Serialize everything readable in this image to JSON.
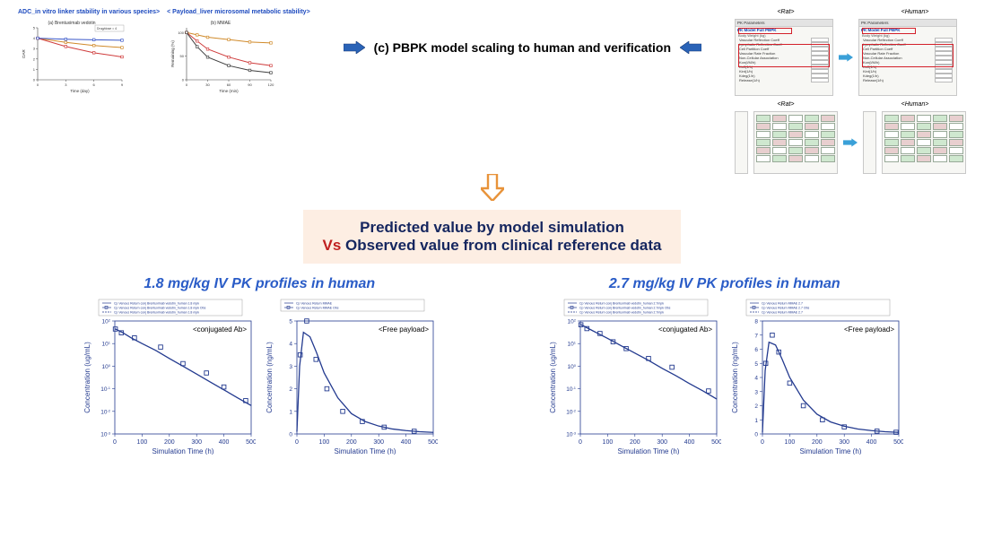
{
  "top": {
    "left_title": "ADC_in vitro linker stability in various species>",
    "right_title": "< Payload_liver microsomal metabolic stability>",
    "mini_a_caption": "(a) Brentuximab vedotin",
    "mini_b_caption": "(b) MMAE",
    "mini_a": {
      "x_label": "Time (day)",
      "y_label": "DAR",
      "xrange": [
        0,
        9
      ],
      "yrange": [
        0,
        5
      ],
      "xticks": [
        0,
        3,
        6,
        9
      ],
      "yticks": [
        0,
        1,
        2,
        3,
        4,
        5
      ],
      "series": [
        {
          "color": "#d08a2a",
          "pts": [
            [
              0,
              4.0
            ],
            [
              3,
              3.6
            ],
            [
              6,
              3.3
            ],
            [
              9,
              3.1
            ]
          ]
        },
        {
          "color": "#cf3c3c",
          "pts": [
            [
              0,
              4.0
            ],
            [
              3,
              3.2
            ],
            [
              6,
              2.6
            ],
            [
              9,
              2.2
            ]
          ]
        },
        {
          "color": "#3a57c9",
          "pts": [
            [
              0,
              4.0
            ],
            [
              3,
              3.9
            ],
            [
              6,
              3.85
            ],
            [
              9,
              3.8
            ]
          ]
        }
      ],
      "legend": "Drug/dose = 4"
    },
    "mini_b": {
      "x_label": "Time (min)",
      "y_label": "Remaining (%)",
      "xrange": [
        0,
        120
      ],
      "yrange": [
        0,
        110
      ],
      "xticks": [
        0,
        30,
        60,
        90,
        120
      ],
      "yticks": [
        0,
        50,
        100
      ],
      "series": [
        {
          "color": "#d08a2a",
          "pts": [
            [
              0,
              100
            ],
            [
              15,
              95
            ],
            [
              30,
              90
            ],
            [
              60,
              85
            ],
            [
              90,
              80
            ],
            [
              120,
              78
            ]
          ]
        },
        {
          "color": "#cf3c3c",
          "pts": [
            [
              0,
              100
            ],
            [
              15,
              82
            ],
            [
              30,
              65
            ],
            [
              60,
              48
            ],
            [
              90,
              36
            ],
            [
              120,
              30
            ]
          ]
        },
        {
          "color": "#3f3f3f",
          "pts": [
            [
              0,
              100
            ],
            [
              15,
              70
            ],
            [
              30,
              48
            ],
            [
              60,
              30
            ],
            [
              90,
              20
            ],
            [
              120,
              15
            ]
          ]
        }
      ]
    },
    "center_label": "(c) PBPK model scaling to human and verification",
    "dialog_rat": "<Rat>",
    "dialog_human": "<Human>",
    "dialog_fields": [
      "Vascular Reflection Coeff",
      "Lymphatic Reflection Coeff",
      "Cell Partition Coeff",
      "Vascular Rate Fraction",
      "Non-Cellular Association",
      "Kon(l/M/h)",
      "Koff(1/h)",
      "Kint(1/h)",
      "Kdeg(1/h)",
      "Release(1/h)"
    ],
    "dialog_values": [
      "0.95",
      "0.2",
      "0.5",
      "0.12",
      "0.0",
      "0.01",
      "0.5",
      "0.03",
      "0.0",
      "0.0"
    ]
  },
  "highlight": {
    "line1": "Predicted value by model simulation",
    "vs": "Vs",
    "line2": " Observed value from clinical reference data"
  },
  "charts": {
    "axis_color": "#233a8f",
    "grid_color": "#e2e2e2",
    "line_color": "#233a8f",
    "marker_color": "#233a8f",
    "font_color": "#233a8f",
    "xlabel": "Simulation Time (h)",
    "ylabel_conj": "Concentration (ug/mL)",
    "ylabel_free": "Concentration (ng/mL)",
    "xrange": [
      0,
      500
    ],
    "xticks": [
      0,
      100,
      200,
      300,
      400,
      500
    ],
    "dose_1_8": {
      "title": "1.8 mg/kg IV PK profiles in human",
      "legend_conj": [
        "Cp Venous Return conj Brentuximab vedotin_human 1.8 mpk",
        "Cp Venous Return conj Brentuximab vedotin_human 1.8 mpk Obs",
        "Cp Venous Return conj Brentuximab vedotin_human 1.8 mpk"
      ],
      "legend_free": [
        "Cp Venous Return MMAE",
        "Cp Venous Return MMAE Obs"
      ],
      "conj": {
        "label": "<conjugated Ab>",
        "yscale": "log",
        "ylim": [
          0.001,
          100.0
        ],
        "yticks": [
          0.001,
          0.01,
          0.1,
          1,
          10.0,
          100.0
        ],
        "line": [
          [
            0,
            45
          ],
          [
            10,
            40
          ],
          [
            30,
            30
          ],
          [
            60,
            18
          ],
          [
            100,
            10
          ],
          [
            150,
            5
          ],
          [
            200,
            2.2
          ],
          [
            250,
            1.0
          ],
          [
            300,
            0.45
          ],
          [
            350,
            0.2
          ],
          [
            400,
            0.09
          ],
          [
            450,
            0.04
          ],
          [
            500,
            0.018
          ]
        ],
        "obs": [
          [
            2,
            44
          ],
          [
            24,
            30
          ],
          [
            72,
            18
          ],
          [
            168,
            7
          ],
          [
            250,
            1.3
          ],
          [
            336,
            0.5
          ],
          [
            400,
            0.12
          ],
          [
            480,
            0.03
          ]
        ]
      },
      "free": {
        "label": "<Free payload>",
        "yscale": "linear",
        "ylim": [
          0,
          5
        ],
        "yticks": [
          0,
          1,
          2,
          3,
          4,
          5
        ],
        "line": [
          [
            0,
            0.1
          ],
          [
            10,
            3.0
          ],
          [
            24,
            4.5
          ],
          [
            48,
            4.3
          ],
          [
            72,
            3.6
          ],
          [
            100,
            2.7
          ],
          [
            150,
            1.6
          ],
          [
            200,
            0.9
          ],
          [
            250,
            0.55
          ],
          [
            300,
            0.35
          ],
          [
            350,
            0.22
          ],
          [
            400,
            0.15
          ],
          [
            450,
            0.1
          ],
          [
            500,
            0.07
          ]
        ],
        "obs": [
          [
            12,
            3.5
          ],
          [
            36,
            5.0
          ],
          [
            70,
            3.3
          ],
          [
            110,
            2.0
          ],
          [
            168,
            1.0
          ],
          [
            240,
            0.55
          ],
          [
            320,
            0.3
          ],
          [
            430,
            0.12
          ]
        ]
      }
    },
    "dose_2_7": {
      "title": "2.7 mg/kg IV PK profiles in human",
      "legend_conj": [
        "Cp Venous Return conj Brentuximab vedotin_human 2.7mpk",
        "Cp Venous Return conj Brentuximab vedotin_human 2.7mpk Obs",
        "Cp Venous Return conj Brentuximab vedotin_human 2.7mpk"
      ],
      "legend_free": [
        "Cp Venous Return MMAE 2.7",
        "Cp Venous Return MMAE 2.7 Obs",
        "Cp Venous Return MMAE 2.7"
      ],
      "conj": {
        "label": "<conjugated Ab>",
        "yscale": "log",
        "ylim": [
          0.001,
          100.0
        ],
        "yticks": [
          0.001,
          0.01,
          0.1,
          1,
          10.0,
          100.0
        ],
        "line": [
          [
            0,
            70
          ],
          [
            10,
            62
          ],
          [
            30,
            46
          ],
          [
            60,
            30
          ],
          [
            100,
            17
          ],
          [
            150,
            8
          ],
          [
            200,
            3.8
          ],
          [
            250,
            1.8
          ],
          [
            300,
            0.8
          ],
          [
            350,
            0.38
          ],
          [
            400,
            0.17
          ],
          [
            450,
            0.08
          ],
          [
            500,
            0.035
          ]
        ],
        "obs": [
          [
            2,
            68
          ],
          [
            24,
            46
          ],
          [
            72,
            28
          ],
          [
            120,
            12
          ],
          [
            168,
            6
          ],
          [
            250,
            2.2
          ],
          [
            336,
            0.9
          ],
          [
            470,
            0.08
          ]
        ]
      },
      "free": {
        "label": "<Free payload>",
        "yscale": "linear",
        "ylim": [
          0,
          8
        ],
        "yticks": [
          0,
          1,
          2,
          3,
          4,
          5,
          6,
          7,
          8
        ],
        "line": [
          [
            0,
            0.1
          ],
          [
            10,
            4.5
          ],
          [
            24,
            6.5
          ],
          [
            48,
            6.3
          ],
          [
            72,
            5.3
          ],
          [
            100,
            4.0
          ],
          [
            150,
            2.4
          ],
          [
            200,
            1.4
          ],
          [
            250,
            0.85
          ],
          [
            300,
            0.55
          ],
          [
            350,
            0.35
          ],
          [
            400,
            0.24
          ],
          [
            450,
            0.16
          ],
          [
            500,
            0.11
          ]
        ],
        "obs": [
          [
            12,
            5.0
          ],
          [
            36,
            7.0
          ],
          [
            60,
            5.8
          ],
          [
            100,
            3.6
          ],
          [
            150,
            2.0
          ],
          [
            220,
            1.0
          ],
          [
            300,
            0.5
          ],
          [
            420,
            0.2
          ],
          [
            490,
            0.12
          ]
        ]
      }
    }
  },
  "colors": {
    "arrow_blue": "#2a63b7",
    "arrow_orange": "#e8933a"
  }
}
